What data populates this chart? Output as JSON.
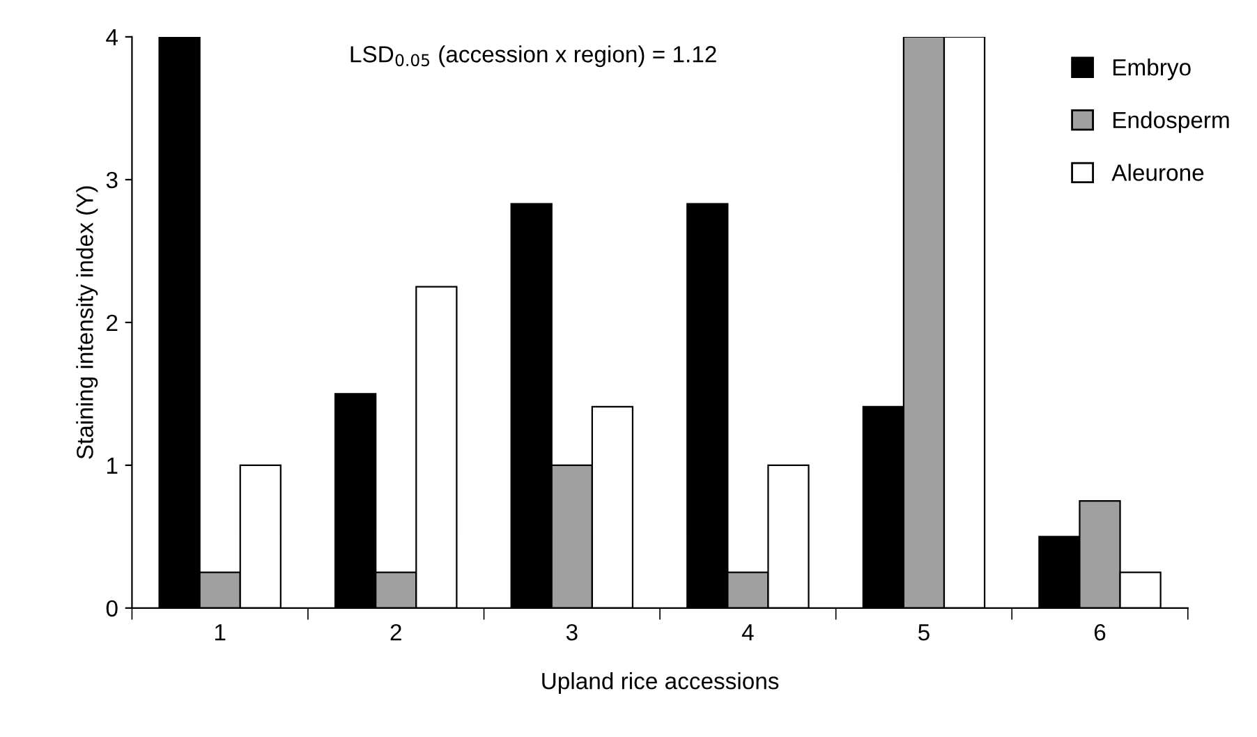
{
  "chart_data": {
    "type": "bar",
    "xlabel": "Upland rice accessions",
    "ylabel": "Staining intensity index (Y)",
    "categories": [
      "1",
      "2",
      "3",
      "4",
      "5",
      "6"
    ],
    "series": [
      {
        "name": "Embryo",
        "color": "#000000",
        "values": [
          4,
          1.5,
          2.83,
          2.83,
          1.41,
          0.5
        ]
      },
      {
        "name": "Endosperm",
        "color": "#a0a0a0",
        "values": [
          0.25,
          0.25,
          1,
          0.25,
          4,
          0.75
        ]
      },
      {
        "name": "Aleurone",
        "color": "#ffffff",
        "values": [
          1,
          2.25,
          1.41,
          1,
          4,
          0.25
        ]
      }
    ],
    "ylim": [
      0,
      4
    ],
    "yticks": [
      0,
      1,
      2,
      3,
      4
    ],
    "annotations": [
      "LSD$_{0.05}$ (accession x region) = 1.12"
    ],
    "legend": "top right",
    "grid": false
  }
}
